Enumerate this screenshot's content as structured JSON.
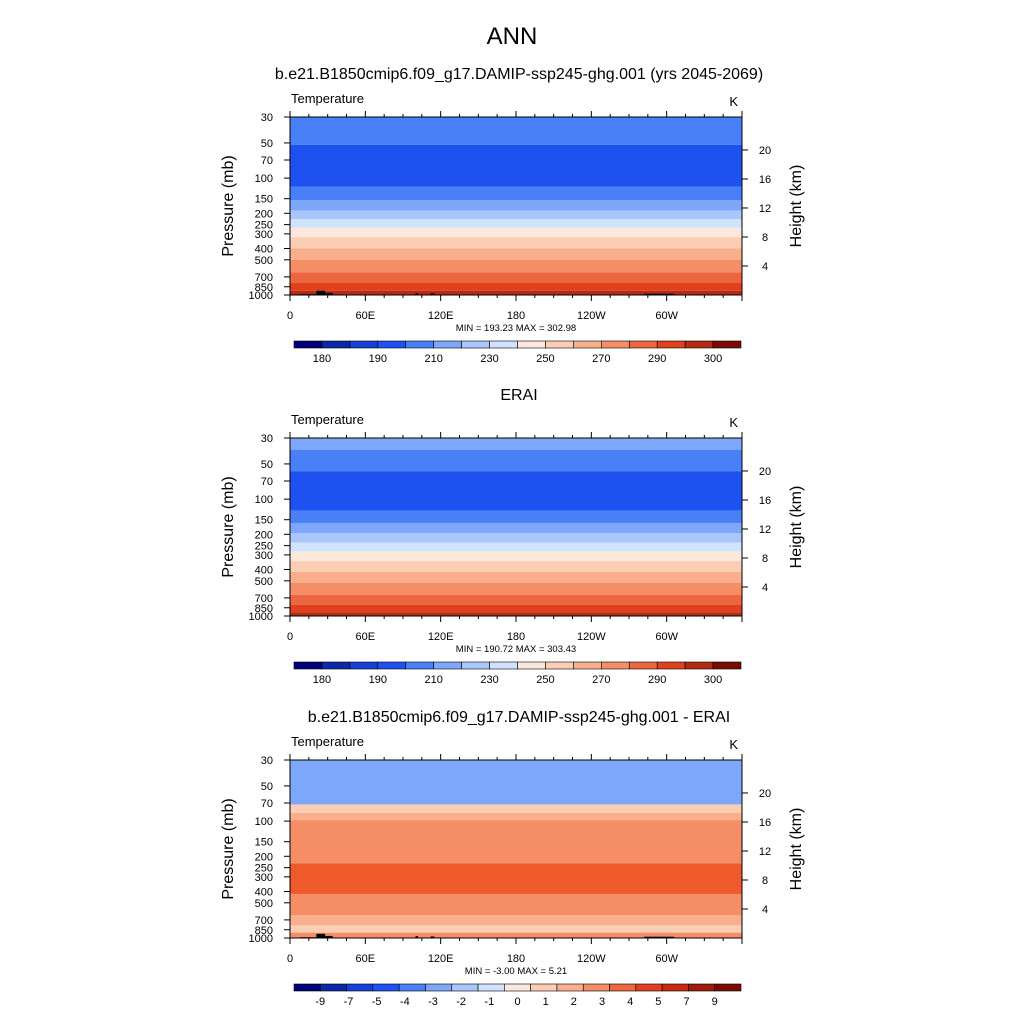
{
  "page_title": "ANN",
  "chart_data": [
    {
      "type": "contour",
      "title": "b.e21.B1850cmip6.f09_g17.DAMIP-ssp245-ghg.001 (yrs 2045-2069)",
      "left_label": "Temperature",
      "right_label": "K",
      "ylabel": "Pressure (mb)",
      "ylabel_right": "Height (km)",
      "x_ticks": [
        "0",
        "60E",
        "120E",
        "180",
        "120W",
        "60W"
      ],
      "x_tick_lon": [
        0,
        60,
        120,
        180,
        240,
        300
      ],
      "xlim": [
        0,
        360
      ],
      "pressure_ticks": [
        "30",
        "50",
        "70",
        "100",
        "150",
        "200",
        "250",
        "300",
        "400",
        "500",
        "700",
        "850",
        "1000"
      ],
      "pressure_values": [
        30,
        50,
        70,
        100,
        150,
        200,
        250,
        300,
        400,
        500,
        700,
        850,
        1000
      ],
      "height_ticks": [
        "4",
        "8",
        "12",
        "16",
        "20"
      ],
      "height_values": [
        4,
        8,
        12,
        16,
        20
      ],
      "ylim_mb": [
        1000,
        30
      ],
      "stats": "MIN = 193.23  MAX = 302.98",
      "colorbar_labels": [
        "180",
        "190",
        "210",
        "230",
        "250",
        "270",
        "290",
        "300"
      ],
      "colorbar_levels": [
        175,
        180,
        185,
        190,
        200,
        210,
        220,
        230,
        240,
        250,
        260,
        270,
        280,
        290,
        295,
        300
      ],
      "bands": [
        {
          "p_top": 30,
          "p_bot": 52,
          "color": "#4a80f7"
        },
        {
          "p_top": 52,
          "p_bot": 118,
          "color": "#1e52f0"
        },
        {
          "p_top": 118,
          "p_bot": 155,
          "color": "#4a80f7"
        },
        {
          "p_top": 155,
          "p_bot": 190,
          "color": "#7da7fa"
        },
        {
          "p_top": 190,
          "p_bot": 225,
          "color": "#a9c7fc"
        },
        {
          "p_top": 225,
          "p_bot": 265,
          "color": "#d0e2fd"
        },
        {
          "p_top": 265,
          "p_bot": 320,
          "color": "#fbe8dc"
        },
        {
          "p_top": 320,
          "p_bot": 400,
          "color": "#fbcdb4"
        },
        {
          "p_top": 400,
          "p_bot": 500,
          "color": "#f9ae8c"
        },
        {
          "p_top": 500,
          "p_bot": 640,
          "color": "#f58d67"
        },
        {
          "p_top": 640,
          "p_bot": 790,
          "color": "#ee6640"
        },
        {
          "p_top": 790,
          "p_bot": 920,
          "color": "#e0401d"
        },
        {
          "p_top": 920,
          "p_bot": 1000,
          "color": "#b52a12"
        }
      ],
      "topography": true
    },
    {
      "type": "contour",
      "title": "ERAI",
      "left_label": "Temperature",
      "right_label": "K",
      "ylabel": "Pressure (mb)",
      "ylabel_right": "Height (km)",
      "x_ticks": [
        "0",
        "60E",
        "120E",
        "180",
        "120W",
        "60W"
      ],
      "x_tick_lon": [
        0,
        60,
        120,
        180,
        240,
        300
      ],
      "xlim": [
        0,
        360
      ],
      "pressure_ticks": [
        "30",
        "50",
        "70",
        "100",
        "150",
        "200",
        "250",
        "300",
        "400",
        "500",
        "700",
        "850",
        "1000"
      ],
      "pressure_values": [
        30,
        50,
        70,
        100,
        150,
        200,
        250,
        300,
        400,
        500,
        700,
        850,
        1000
      ],
      "height_ticks": [
        "4",
        "8",
        "12",
        "16",
        "20"
      ],
      "height_values": [
        4,
        8,
        12,
        16,
        20
      ],
      "ylim_mb": [
        1000,
        30
      ],
      "stats": "MIN = 190.72  MAX = 303.43",
      "colorbar_labels": [
        "180",
        "190",
        "210",
        "230",
        "250",
        "270",
        "290",
        "300"
      ],
      "colorbar_levels": [
        175,
        180,
        185,
        190,
        200,
        210,
        220,
        230,
        240,
        250,
        260,
        270,
        280,
        290,
        295,
        300
      ],
      "bands": [
        {
          "p_top": 30,
          "p_bot": 38,
          "color": "#7da7fa"
        },
        {
          "p_top": 38,
          "p_bot": 58,
          "color": "#4a80f7"
        },
        {
          "p_top": 58,
          "p_bot": 125,
          "color": "#1e52f0"
        },
        {
          "p_top": 125,
          "p_bot": 160,
          "color": "#4a80f7"
        },
        {
          "p_top": 160,
          "p_bot": 195,
          "color": "#7da7fa"
        },
        {
          "p_top": 195,
          "p_bot": 235,
          "color": "#a9c7fc"
        },
        {
          "p_top": 235,
          "p_bot": 280,
          "color": "#d0e2fd"
        },
        {
          "p_top": 280,
          "p_bot": 340,
          "color": "#fbe8dc"
        },
        {
          "p_top": 340,
          "p_bot": 420,
          "color": "#fbcdb4"
        },
        {
          "p_top": 420,
          "p_bot": 520,
          "color": "#f9ae8c"
        },
        {
          "p_top": 520,
          "p_bot": 660,
          "color": "#f58d67"
        },
        {
          "p_top": 660,
          "p_bot": 800,
          "color": "#ee6640"
        },
        {
          "p_top": 800,
          "p_bot": 930,
          "color": "#e0401d"
        },
        {
          "p_top": 930,
          "p_bot": 1000,
          "color": "#b52a12"
        }
      ],
      "topography": false
    },
    {
      "type": "contour",
      "title": "b.e21.B1850cmip6.f09_g17.DAMIP-ssp245-ghg.001 - ERAI",
      "left_label": "Temperature",
      "right_label": "K",
      "ylabel": "Pressure (mb)",
      "ylabel_right": "Height (km)",
      "x_ticks": [
        "0",
        "60E",
        "120E",
        "180",
        "120W",
        "60W"
      ],
      "x_tick_lon": [
        0,
        60,
        120,
        180,
        240,
        300
      ],
      "xlim": [
        0,
        360
      ],
      "pressure_ticks": [
        "30",
        "50",
        "70",
        "100",
        "150",
        "200",
        "250",
        "300",
        "400",
        "500",
        "700",
        "850",
        "1000"
      ],
      "pressure_values": [
        30,
        50,
        70,
        100,
        150,
        200,
        250,
        300,
        400,
        500,
        700,
        850,
        1000
      ],
      "height_ticks": [
        "4",
        "8",
        "12",
        "16",
        "20"
      ],
      "height_values": [
        4,
        8,
        12,
        16,
        20
      ],
      "ylim_mb": [
        1000,
        30
      ],
      "stats": "MIN = -3.00  MAX =  5.21",
      "colorbar_labels": [
        "-9",
        "-7",
        "-5",
        "-4",
        "-3",
        "-2",
        "-1",
        "0",
        "1",
        "2",
        "3",
        "4",
        "5",
        "7",
        "9"
      ],
      "colorbar_levels": [
        -11,
        -9,
        -7,
        -5,
        -4,
        -3,
        -2,
        -1,
        0,
        1,
        2,
        3,
        4,
        5,
        7,
        9,
        11
      ],
      "bands": [
        {
          "p_top": 30,
          "p_bot": 72,
          "color": "#7da7fa"
        },
        {
          "p_top": 72,
          "p_bot": 85,
          "color": "#fbcdb4"
        },
        {
          "p_top": 85,
          "p_bot": 98,
          "color": "#f9ae8c"
        },
        {
          "p_top": 98,
          "p_bot": 230,
          "color": "#f58d67"
        },
        {
          "p_top": 230,
          "p_bot": 420,
          "color": "#ee5a2c"
        },
        {
          "p_top": 420,
          "p_bot": 640,
          "color": "#f58d67"
        },
        {
          "p_top": 640,
          "p_bot": 780,
          "color": "#f9ae8c"
        },
        {
          "p_top": 780,
          "p_bot": 900,
          "color": "#fbcdb4"
        },
        {
          "p_top": 900,
          "p_bot": 1000,
          "color": "#f58d67"
        }
      ],
      "topography": true
    }
  ]
}
